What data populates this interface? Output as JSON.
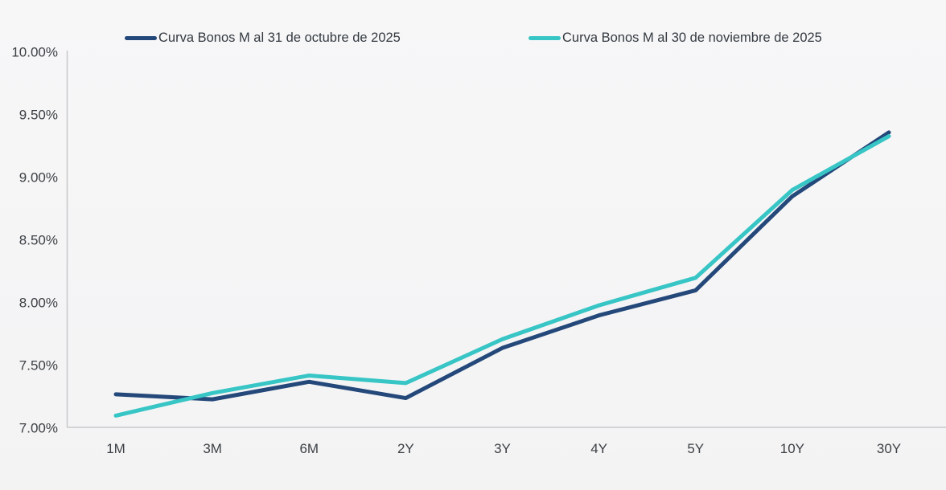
{
  "page": {
    "background": "#f4f4f5"
  },
  "legend": [
    {
      "label": "Curva Bonos M al 31 de octubre de 2025",
      "color": "#234879"
    },
    {
      "label": "Curva Bonos M al 30 de noviembre de 2025",
      "color": "#38c5c5"
    }
  ],
  "chart_data": {
    "type": "line",
    "categories": [
      "1M",
      "3M",
      "6M",
      "2Y",
      "3Y",
      "4Y",
      "5Y",
      "10Y",
      "30Y"
    ],
    "series": [
      {
        "name": "Curva Bonos M al 31 de octubre de 2025",
        "color": "#234879",
        "values": [
          7.27,
          7.23,
          7.37,
          7.24,
          7.64,
          7.9,
          8.1,
          8.85,
          9.36
        ]
      },
      {
        "name": "Curva Bonos M al 30 de noviembre de 2025",
        "color": "#38c5c5",
        "values": [
          7.1,
          7.28,
          7.42,
          7.36,
          7.71,
          7.98,
          8.2,
          8.9,
          9.33
        ]
      }
    ],
    "title": "",
    "xlabel": "",
    "ylabel": "",
    "ylim": [
      7.0,
      10.0
    ],
    "ytick_step": 0.5,
    "ytick_labels": [
      "10.00%",
      "9.50%",
      "9.00%",
      "8.50%",
      "8.00%",
      "7.50%",
      "7.00%"
    ],
    "grid": false,
    "legend_position": "top",
    "axis_color": "#c6c8ca"
  }
}
